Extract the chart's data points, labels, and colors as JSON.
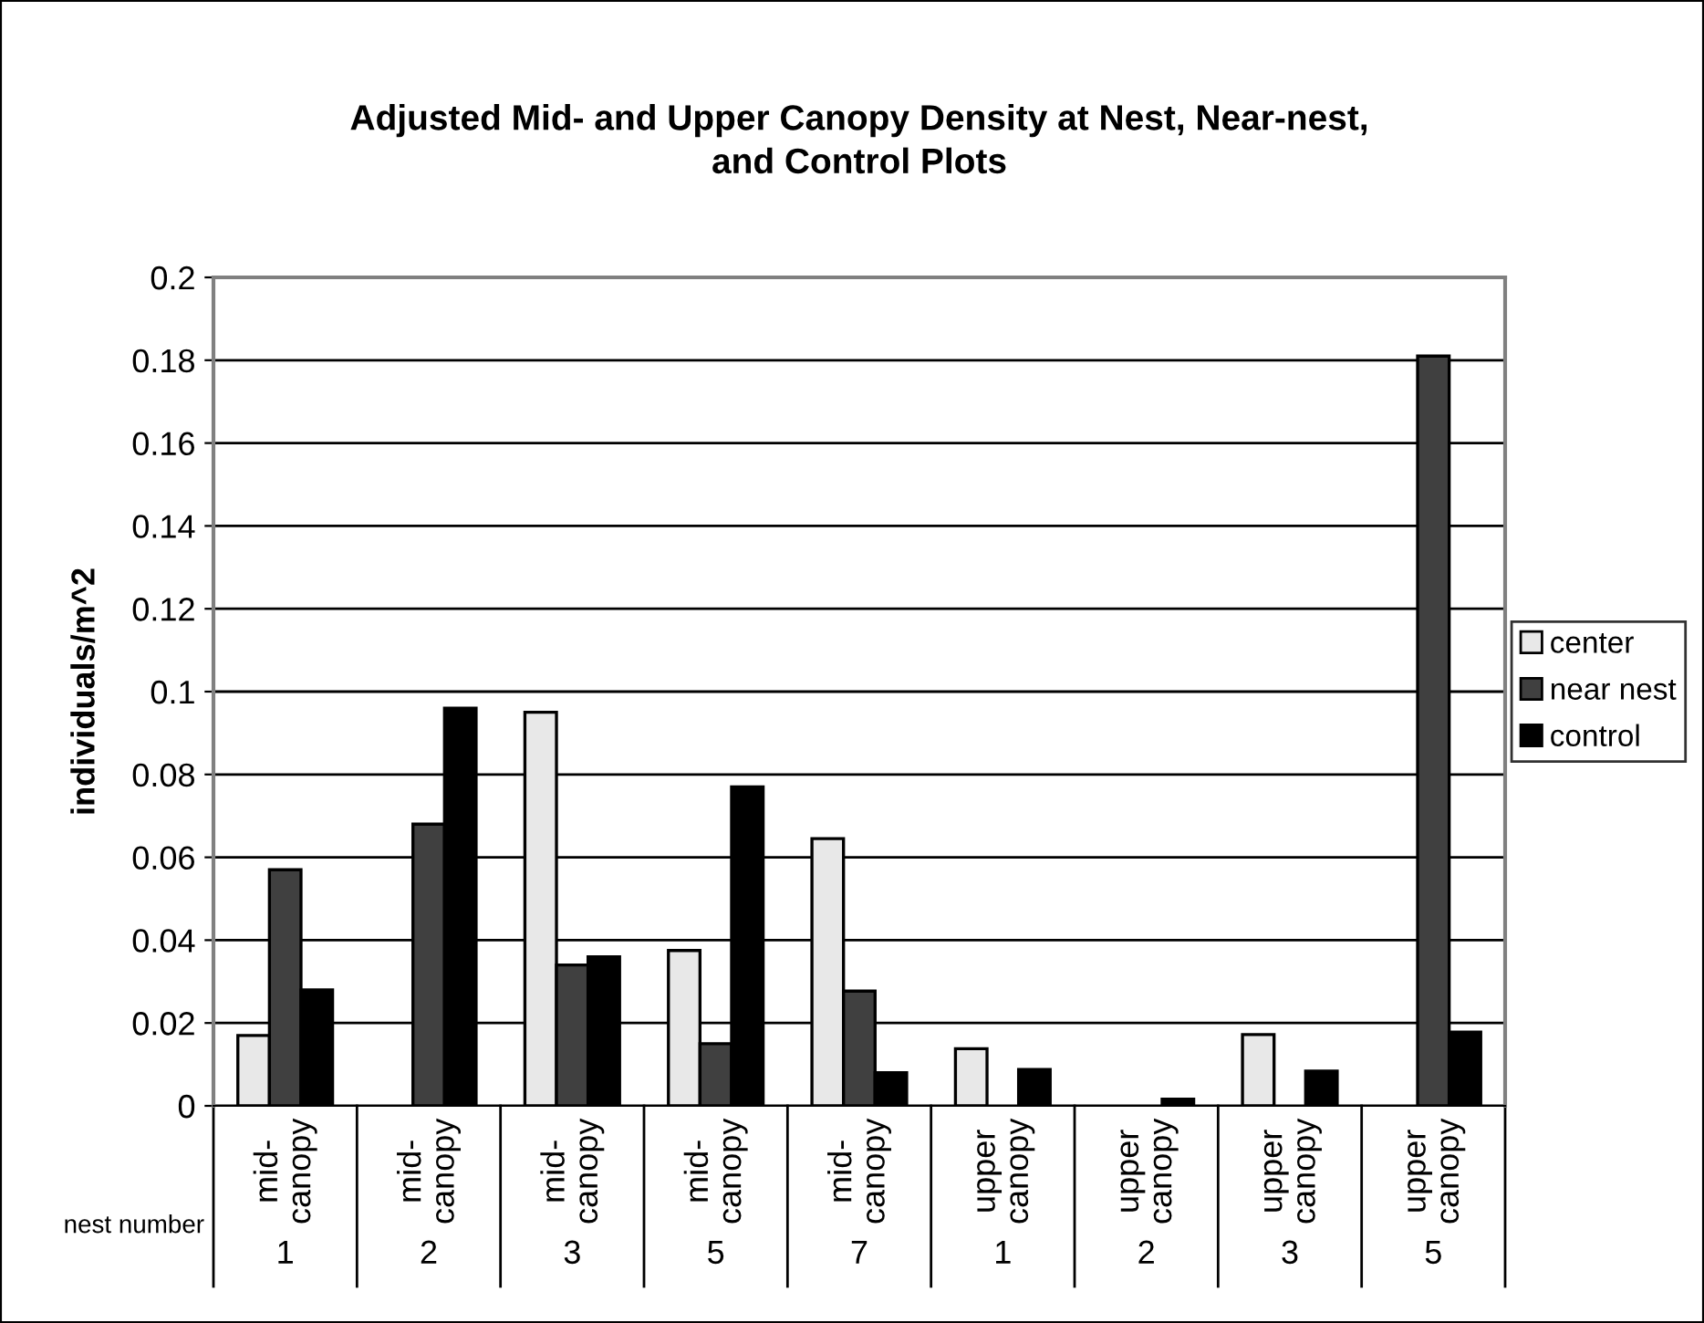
{
  "chart_data": {
    "type": "bar",
    "title": "Adjusted Mid- and Upper Canopy Density at Nest, Near-nest,\nand Control Plots",
    "ylabel": "individuals/m^2",
    "categories": [
      "mid-\ncanopy\n1",
      "mid-\ncanopy\n2",
      "mid-\ncanopy\n3",
      "mid-\ncanopy\n5",
      "mid-\ncanopy\n7",
      "upper\ncanopy\n1",
      "upper\ncanopy\n2",
      "upper\ncanopy\n3",
      "upper\ncanopy\n5"
    ],
    "series": [
      {
        "name": "center",
        "color": "#e8e8e8",
        "values": [
          0.017,
          0,
          0.095,
          0.0375,
          0.0645,
          0.0138,
          0,
          0.0172,
          0
        ]
      },
      {
        "name": "near nest",
        "color": "#404040",
        "values": [
          0.057,
          0.068,
          0.034,
          0.015,
          0.0277,
          0,
          0,
          0,
          0.181
        ]
      },
      {
        "name": "control",
        "color": "#000000",
        "values": [
          0.028,
          0.096,
          0.036,
          0.077,
          0.008,
          0.0088,
          0.0016,
          0.0084,
          0.0178
        ]
      }
    ],
    "ylim": [
      0,
      0.2
    ],
    "yticks": [
      0,
      0.02,
      0.04,
      0.06,
      0.08,
      0.1,
      0.12,
      0.14,
      0.16,
      0.18,
      0.2
    ],
    "grid": "y",
    "legend": "right",
    "annotations": [
      "nest number"
    ]
  }
}
